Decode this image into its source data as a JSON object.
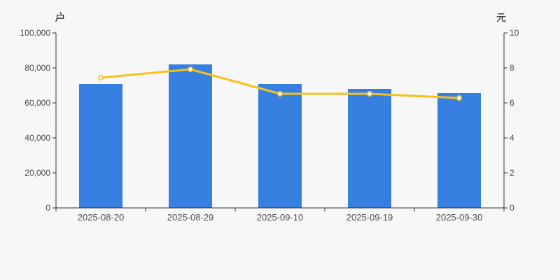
{
  "chart_data": {
    "type": "bar",
    "title": "",
    "categories": [
      "2025-08-20",
      "2025-08-29",
      "2025-09-10",
      "2025-09-19",
      "2025-09-30"
    ],
    "series": [
      {
        "name": "户",
        "type": "bar",
        "yaxis": "left",
        "color": "#3780e1",
        "values": [
          70800,
          82000,
          70800,
          68000,
          65600
        ]
      },
      {
        "name": "元",
        "type": "line",
        "yaxis": "right",
        "color": "#f6c21a",
        "values": [
          7.44,
          7.92,
          6.52,
          6.52,
          6.28
        ]
      }
    ],
    "left_axis": {
      "unit": "户",
      "min": 0,
      "max": 100000,
      "tick_labels": [
        "0",
        "20,000",
        "40,000",
        "60,000",
        "80,000",
        "100,000"
      ]
    },
    "right_axis": {
      "unit": "元",
      "min": 0,
      "max": 10,
      "tick_labels": [
        "0",
        "2",
        "4",
        "6",
        "8",
        "10"
      ]
    },
    "grid": false,
    "legend": false,
    "layout": {
      "legend_position": "none",
      "xaxis_tick_between_categories": true
    },
    "colors": {
      "background": "#f7f7f8",
      "axis_line": "#333333",
      "tick_text": "#4d4d4d",
      "unit_text": "#333333",
      "bar": "#3780e1",
      "line": "#f6c21a",
      "point_fill": "#ffffff"
    }
  }
}
